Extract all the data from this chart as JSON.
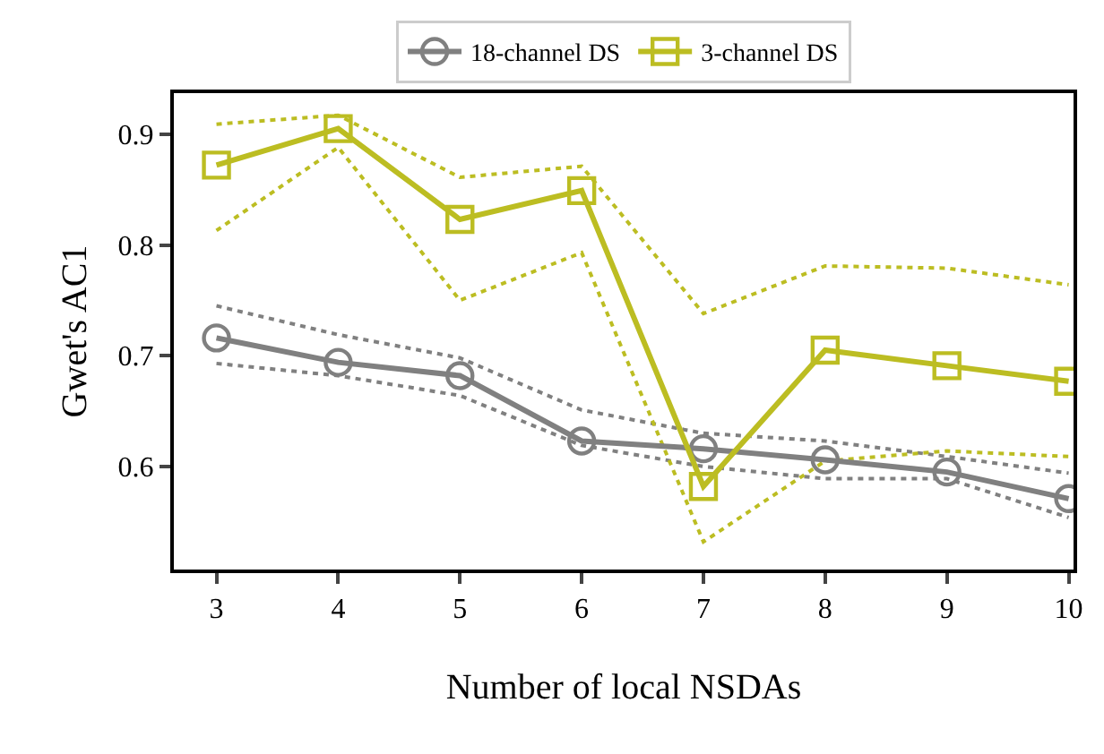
{
  "chart_data": {
    "type": "line",
    "xlabel": "Number of local NSDAs",
    "ylabel": "Gwet's AC1",
    "x": [
      3,
      4,
      5,
      6,
      7,
      8,
      9,
      10
    ],
    "series": [
      {
        "color": "#808080",
        "line_style": "dotted",
        "marker": "none",
        "values": [
          0.693,
          0.682,
          0.664,
          0.619,
          0.6,
          0.589,
          0.589,
          0.554
        ]
      },
      {
        "color": "#808080",
        "line_style": "dotted",
        "marker": "none",
        "values": [
          0.745,
          0.719,
          0.698,
          0.651,
          0.63,
          0.623,
          0.609,
          0.594
        ]
      },
      {
        "color": "#bcbd22",
        "line_style": "dotted",
        "marker": "none",
        "values": [
          0.813,
          0.888,
          0.75,
          0.793,
          0.532,
          0.605,
          0.614,
          0.609
        ]
      },
      {
        "color": "#bcbd22",
        "line_style": "dotted",
        "marker": "none",
        "values": [
          0.909,
          0.917,
          0.861,
          0.871,
          0.738,
          0.781,
          0.779,
          0.764
        ]
      },
      {
        "name": "18-channel DS",
        "color": "#808080",
        "marker": "circle",
        "values": [
          0.716,
          0.694,
          0.682,
          0.623,
          0.616,
          0.606,
          0.595,
          0.571
        ]
      },
      {
        "name": "3-channel DS",
        "color": "#bcbd22",
        "marker": "square",
        "values": [
          0.872,
          0.905,
          0.823,
          0.849,
          0.582,
          0.705,
          0.691,
          0.677
        ]
      }
    ],
    "xlim": [
      2.65,
      10.04
    ],
    "ylim": [
      0.507,
      0.937
    ],
    "xticks": [
      3,
      4,
      5,
      6,
      7,
      8,
      9,
      10
    ],
    "yticks": [
      0.6,
      0.7,
      0.8,
      0.9
    ],
    "legend": "top",
    "line_style": "solid"
  }
}
